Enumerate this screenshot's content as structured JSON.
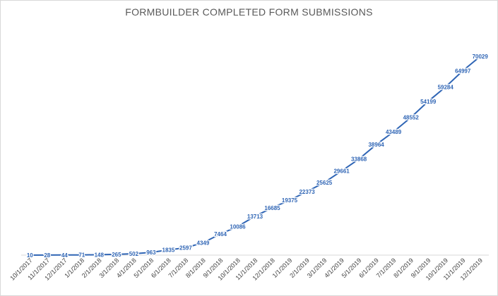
{
  "chart_data": {
    "type": "line",
    "title": "FORMBUILDER COMPLETED FORM SUBMISSIONS",
    "xlabel": "",
    "ylabel": "",
    "ylim": [
      0,
      80000
    ],
    "grid": false,
    "legend": "none",
    "colors": {
      "line": "#2f65b5",
      "label": "#2f65b5",
      "axis": "#d9d9d9",
      "tick_text": "#404040"
    },
    "categories": [
      "10/1/2017",
      "11/1/2017",
      "12/1/2017",
      "1/1/2018",
      "2/1/2018",
      "3/1/2018",
      "4/1/2018",
      "5/1/2018",
      "6/1/2018",
      "7/1/2018",
      "8/1/2018",
      "9/1/2018",
      "10/1/2018",
      "11/1/2018",
      "12/1/2018",
      "1/1/2019",
      "2/1/2019",
      "3/1/2019",
      "4/1/2019",
      "5/1/2019",
      "6/1/2019",
      "7/1/2019",
      "8/1/2019",
      "9/1/2019",
      "10/1/2019",
      "11/1/2019",
      "12/1/2019"
    ],
    "series": [
      {
        "values": [
          10,
          28,
          44,
          71,
          148,
          265,
          502,
          963,
          1835,
          2597,
          4349,
          7464,
          10086,
          13713,
          16685,
          19375,
          22373,
          25625,
          29661,
          33868,
          38964,
          43489,
          48552,
          54199,
          59284,
          64997,
          70029
        ]
      }
    ]
  }
}
